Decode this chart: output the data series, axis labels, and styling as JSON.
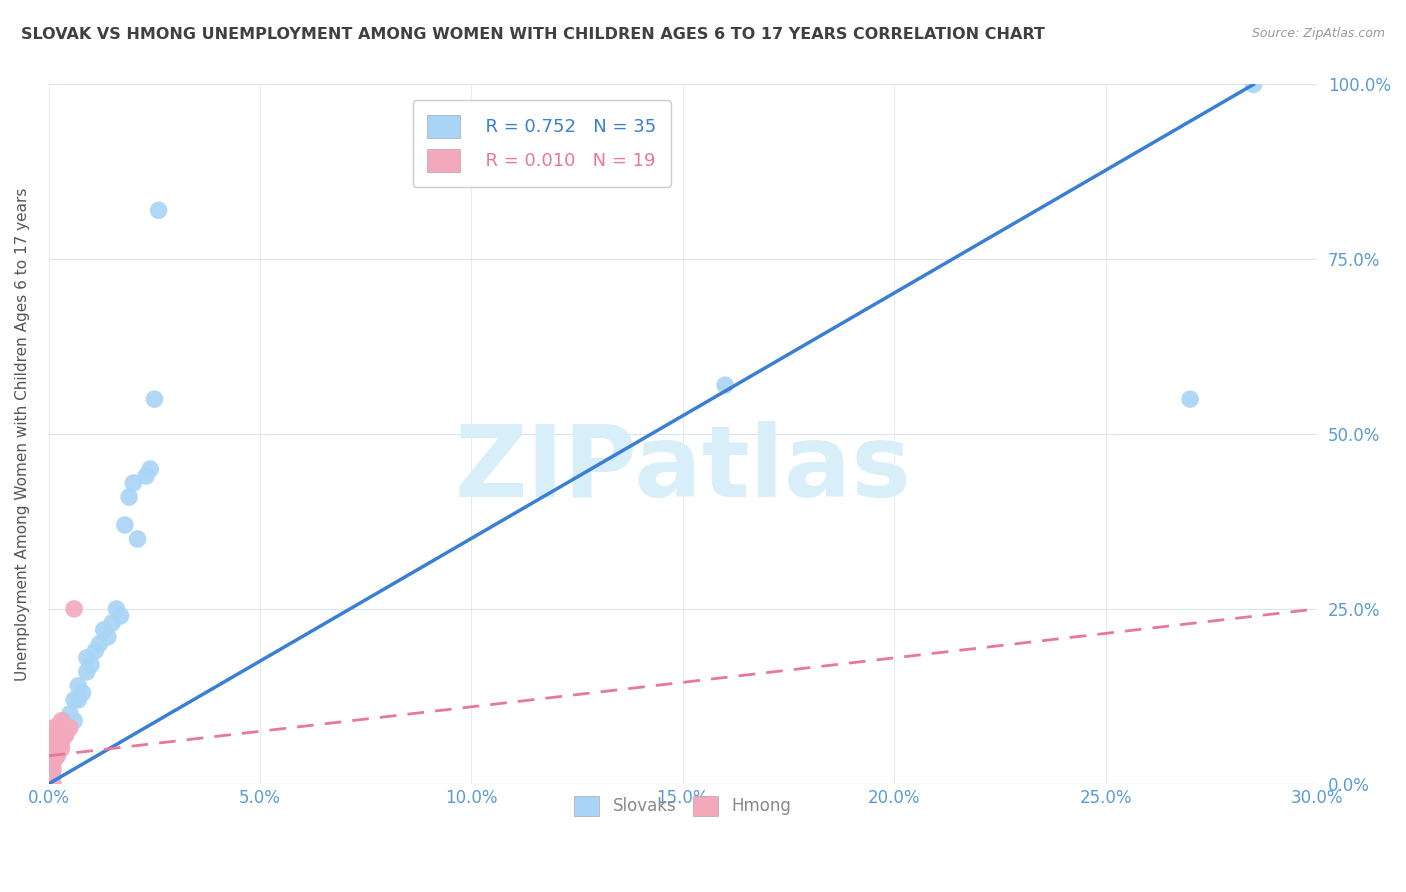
{
  "title": "SLOVAK VS HMONG UNEMPLOYMENT AMONG WOMEN WITH CHILDREN AGES 6 TO 17 YEARS CORRELATION CHART",
  "source": "Source: ZipAtlas.com",
  "ylabel": "Unemployment Among Women with Children Ages 6 to 17 years",
  "xlim": [
    0.0,
    0.3
  ],
  "ylim": [
    0.0,
    1.0
  ],
  "xticks": [
    0.0,
    0.05,
    0.1,
    0.15,
    0.2,
    0.25,
    0.3
  ],
  "yticks": [
    0.0,
    0.25,
    0.5,
    0.75,
    1.0
  ],
  "xtick_labels": [
    "0.0%",
    "5.0%",
    "10.0%",
    "15.0%",
    "20.0%",
    "25.0%",
    "30.0%"
  ],
  "ytick_labels": [
    "0.0%",
    "25.0%",
    "50.0%",
    "75.0%",
    "100.0%"
  ],
  "slovak_color": "#A8D4F5",
  "hmong_color": "#F4A8BC",
  "slovak_line_color": "#3B7FD4",
  "hmong_line_color": "#E8789A",
  "watermark_color": "#D8EEF8",
  "legend_slovak_r": "R = 0.752",
  "legend_slovak_n": "N = 35",
  "legend_hmong_r": "R = 0.010",
  "legend_hmong_n": "N = 19",
  "title_color": "#404040",
  "tick_color": "#5B9BD5",
  "grid_color": "#D8E4F0",
  "slovak_x": [
    0.001,
    0.001,
    0.002,
    0.002,
    0.003,
    0.003,
    0.004,
    0.004,
    0.005,
    0.006,
    0.006,
    0.007,
    0.007,
    0.008,
    0.009,
    0.009,
    0.01,
    0.011,
    0.012,
    0.013,
    0.014,
    0.015,
    0.016,
    0.017,
    0.018,
    0.019,
    0.02,
    0.021,
    0.023,
    0.024,
    0.025,
    0.026,
    0.16,
    0.27,
    0.285
  ],
  "slovak_y": [
    0.01,
    0.03,
    0.04,
    0.06,
    0.06,
    0.08,
    0.07,
    0.09,
    0.1,
    0.09,
    0.12,
    0.12,
    0.14,
    0.13,
    0.16,
    0.18,
    0.17,
    0.19,
    0.2,
    0.22,
    0.21,
    0.23,
    0.25,
    0.24,
    0.37,
    0.41,
    0.43,
    0.35,
    0.44,
    0.45,
    0.55,
    0.82,
    0.57,
    0.55,
    1.0
  ],
  "hmong_x": [
    0.001,
    0.001,
    0.001,
    0.001,
    0.001,
    0.001,
    0.001,
    0.002,
    0.002,
    0.002,
    0.002,
    0.002,
    0.003,
    0.003,
    0.003,
    0.003,
    0.004,
    0.005,
    0.006
  ],
  "hmong_y": [
    0.0,
    0.02,
    0.03,
    0.04,
    0.05,
    0.07,
    0.08,
    0.04,
    0.05,
    0.06,
    0.07,
    0.08,
    0.05,
    0.06,
    0.07,
    0.09,
    0.07,
    0.08,
    0.25
  ],
  "slovak_line_x": [
    0.0,
    0.285
  ],
  "slovak_line_y": [
    0.0,
    1.0
  ],
  "hmong_line_x": [
    0.0,
    0.3
  ],
  "hmong_line_y": [
    0.04,
    0.25
  ]
}
